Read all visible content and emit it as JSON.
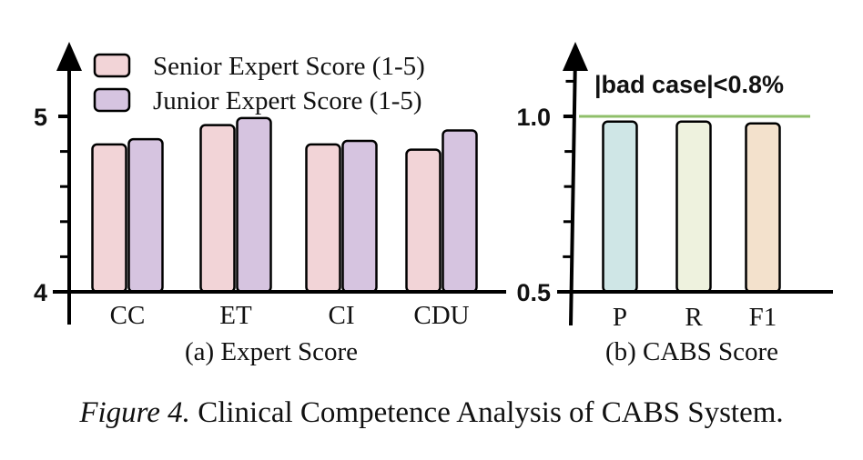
{
  "chart_data": [
    {
      "type": "bar",
      "title": "(a) Expert Score",
      "categories": [
        "CC",
        "ET",
        "CI",
        "CDU"
      ],
      "series": [
        {
          "name": "Senior Expert Score (1-5)",
          "values": [
            4.84,
            4.95,
            4.84,
            4.81
          ]
        },
        {
          "name": "Junior Expert Score (1-5)",
          "values": [
            4.87,
            4.99,
            4.86,
            4.92
          ]
        }
      ],
      "ylim": [
        4,
        5.2
      ],
      "yticks": [
        4,
        5
      ],
      "ytick_labels": [
        "4",
        "5"
      ],
      "ylabel": "",
      "xlabel": "",
      "legend_position": "top",
      "colors": {
        "series_fills": [
          "#f2d4d7",
          "#d6c4e0"
        ],
        "axis": "#000000"
      }
    },
    {
      "type": "bar",
      "title": "(b) CABS Score",
      "categories": [
        "P",
        "R",
        "F1"
      ],
      "values": [
        0.985,
        0.985,
        0.98
      ],
      "ylim": [
        0.5,
        1.2
      ],
      "yticks": [
        0.5,
        1.0
      ],
      "ytick_labels": [
        "0.5",
        "1.0"
      ],
      "reference_line": {
        "value": 1.0,
        "color": "#8fbf6a"
      },
      "annotation": "|bad case|<0.8%",
      "ylabel": "",
      "xlabel": "",
      "colors": {
        "bar_fills": [
          "#cfe6e6",
          "#eef2de",
          "#f3e1cc"
        ],
        "axis": "#000000"
      }
    }
  ],
  "caption": {
    "label": "Figure 4.",
    "text": "Clinical Competence Analysis of CABS System."
  }
}
